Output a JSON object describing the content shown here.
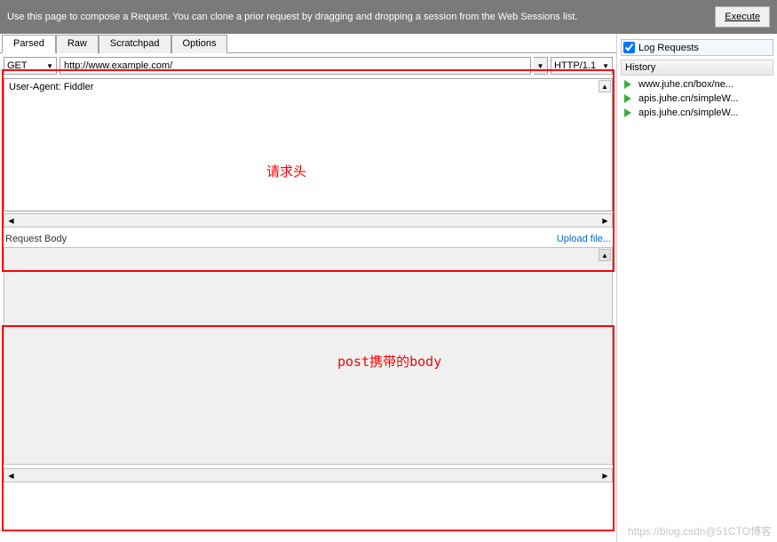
{
  "topbar": {
    "instruction": "Use this page to compose a Request. You can clone a prior request by dragging and dropping a session from the Web Sessions list.",
    "execute_label": "Execute",
    "execute_underline_char": "x"
  },
  "tabs": {
    "items": [
      "Parsed",
      "Raw",
      "Scratchpad",
      "Options"
    ],
    "active_index": 0
  },
  "request_line": {
    "method": "GET",
    "url": "http://www.example.com/",
    "protocol": "HTTP/1.1"
  },
  "headers": {
    "text": "User-Agent: Fiddler"
  },
  "body": {
    "section_label": "Request Body",
    "upload_label": "Upload file..."
  },
  "annotations": {
    "headers_label": "请求头",
    "body_label": "post携带的body"
  },
  "right_panel": {
    "log_requests_label": "Log Requests",
    "log_checked": true,
    "history_label": "History",
    "history_items": [
      "www.juhe.cn/box/ne...",
      "apis.juhe.cn/simpleW...",
      "apis.juhe.cn/simpleW..."
    ]
  },
  "watermark": "https://blog.csdn@51CTO博客",
  "colors": {
    "topbar_bg": "#7a7a7a",
    "annotation_red": "#ff0000",
    "link_blue": "#0066cc",
    "hist_icon_green": "#3cb043"
  }
}
